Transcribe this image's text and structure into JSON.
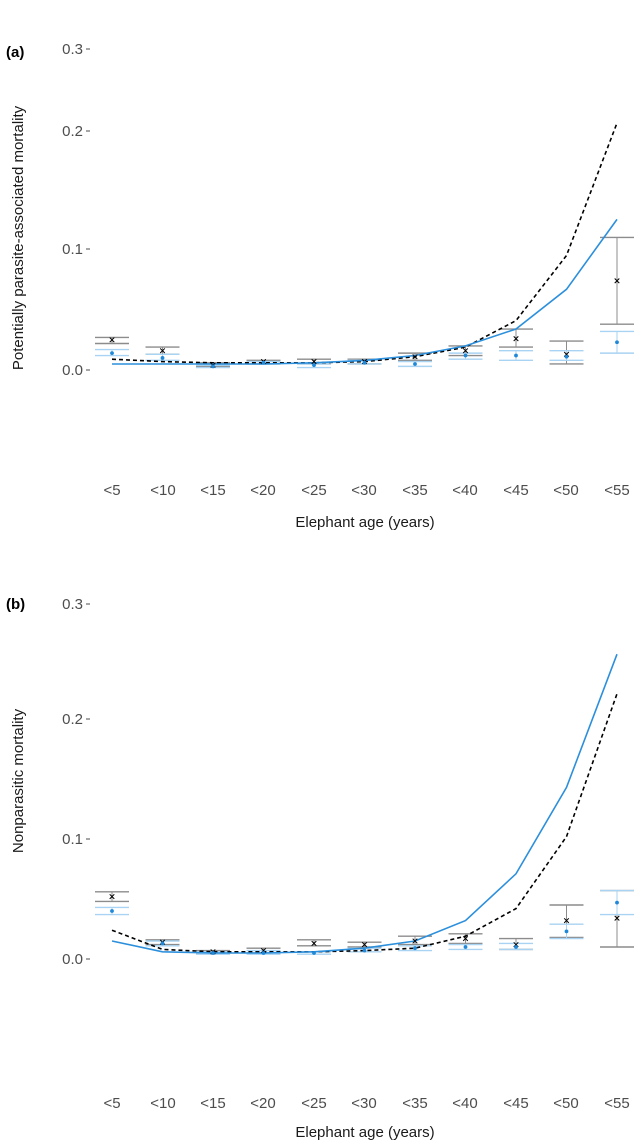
{
  "colors": {
    "observed_black": "#000000",
    "observed_blue": "#1f88d8",
    "ci_grey": "#8c8c8c",
    "ci_lightblue": "#a9d3f2",
    "model_black": "#000000",
    "model_blue": "#2c8fdc",
    "text": "#4d4d4d"
  },
  "chart_data": [
    {
      "type": "line",
      "panel_label": "(a)",
      "xlabel": "Elephant age (years)",
      "ylabel": "Potentially parasite-associated mortality",
      "categories": [
        "<5",
        "<10",
        "<15",
        "<20",
        "<25",
        "<30",
        "<35",
        "<40",
        "<45",
        "<50",
        "<55"
      ],
      "yticks": [
        "0.0",
        "0.1",
        "0.2",
        "0.3"
      ],
      "ylim": [
        -0.02,
        0.3
      ],
      "series": [
        {
          "style": "dashed-black",
          "values": [
            0.009,
            0.007,
            0.006,
            0.006,
            0.006,
            0.007,
            0.011,
            0.019,
            0.041,
            0.095,
            0.205
          ]
        },
        {
          "style": "solid-blue",
          "values": [
            0.005,
            0.005,
            0.005,
            0.005,
            0.006,
            0.008,
            0.012,
            0.02,
            0.034,
            0.067,
            0.125
          ]
        }
      ],
      "observed_black": [
        {
          "mean": 0.025,
          "lo": 0.022,
          "hi": 0.027
        },
        {
          "mean": 0.016,
          "lo": 0.013,
          "hi": 0.019
        },
        {
          "mean": 0.004,
          "lo": 0.003,
          "hi": 0.006
        },
        {
          "mean": 0.007,
          "lo": 0.005,
          "hi": 0.008
        },
        {
          "mean": 0.007,
          "lo": 0.005,
          "hi": 0.009
        },
        {
          "mean": 0.007,
          "lo": 0.005,
          "hi": 0.009
        },
        {
          "mean": 0.011,
          "lo": 0.008,
          "hi": 0.014
        },
        {
          "mean": 0.016,
          "lo": 0.012,
          "hi": 0.02
        },
        {
          "mean": 0.026,
          "lo": 0.019,
          "hi": 0.034
        },
        {
          "mean": 0.013,
          "lo": 0.005,
          "hi": 0.024
        },
        {
          "mean": 0.074,
          "lo": 0.038,
          "hi": 0.11
        }
      ],
      "observed_blue": [
        {
          "mean": 0.014,
          "lo": 0.012,
          "hi": 0.017
        },
        {
          "mean": 0.01,
          "lo": 0.008,
          "hi": 0.013
        },
        {
          "mean": 0.003,
          "lo": 0.002,
          "hi": 0.004
        },
        {
          "mean": 0.006,
          "lo": 0.005,
          "hi": 0.007
        },
        {
          "mean": 0.004,
          "lo": 0.002,
          "hi": 0.005
        },
        {
          "mean": 0.006,
          "lo": 0.005,
          "hi": 0.008
        },
        {
          "mean": 0.005,
          "lo": 0.003,
          "hi": 0.007
        },
        {
          "mean": 0.012,
          "lo": 0.009,
          "hi": 0.014
        },
        {
          "mean": 0.012,
          "lo": 0.008,
          "hi": 0.016
        },
        {
          "mean": 0.011,
          "lo": 0.008,
          "hi": 0.016
        },
        {
          "mean": 0.023,
          "lo": 0.014,
          "hi": 0.032
        }
      ]
    },
    {
      "type": "line",
      "panel_label": "(b)",
      "xlabel": "Elephant age (years)",
      "ylabel": "Nonparasitic mortality",
      "categories": [
        "<5",
        "<10",
        "<15",
        "<20",
        "<25",
        "<30",
        "<35",
        "<40",
        "<45",
        "<50",
        "<55"
      ],
      "yticks": [
        "0.0",
        "0.1",
        "0.2",
        "0.3"
      ],
      "ylim": [
        -0.02,
        0.3
      ],
      "series": [
        {
          "style": "dashed-black",
          "values": [
            0.024,
            0.008,
            0.006,
            0.006,
            0.006,
            0.007,
            0.009,
            0.019,
            0.042,
            0.102,
            0.221
          ]
        },
        {
          "style": "solid-blue",
          "values": [
            0.015,
            0.006,
            0.005,
            0.005,
            0.006,
            0.009,
            0.015,
            0.032,
            0.071,
            0.143,
            0.254
          ]
        }
      ],
      "observed_black": [
        {
          "mean": 0.052,
          "lo": 0.048,
          "hi": 0.056
        },
        {
          "mean": 0.014,
          "lo": 0.012,
          "hi": 0.016
        },
        {
          "mean": 0.006,
          "lo": 0.005,
          "hi": 0.007
        },
        {
          "mean": 0.007,
          "lo": 0.005,
          "hi": 0.009
        },
        {
          "mean": 0.013,
          "lo": 0.011,
          "hi": 0.016
        },
        {
          "mean": 0.012,
          "lo": 0.01,
          "hi": 0.014
        },
        {
          "mean": 0.015,
          "lo": 0.012,
          "hi": 0.019
        },
        {
          "mean": 0.017,
          "lo": 0.013,
          "hi": 0.021
        },
        {
          "mean": 0.012,
          "lo": 0.008,
          "hi": 0.017
        },
        {
          "mean": 0.032,
          "lo": 0.018,
          "hi": 0.045
        },
        {
          "mean": 0.034,
          "lo": 0.01,
          "hi": 0.057
        }
      ],
      "observed_blue": [
        {
          "mean": 0.04,
          "lo": 0.037,
          "hi": 0.043
        },
        {
          "mean": 0.013,
          "lo": 0.011,
          "hi": 0.015
        },
        {
          "mean": 0.005,
          "lo": 0.004,
          "hi": 0.006
        },
        {
          "mean": 0.005,
          "lo": 0.004,
          "hi": 0.007
        },
        {
          "mean": 0.005,
          "lo": 0.004,
          "hi": 0.006
        },
        {
          "mean": 0.007,
          "lo": 0.006,
          "hi": 0.009
        },
        {
          "mean": 0.009,
          "lo": 0.007,
          "hi": 0.011
        },
        {
          "mean": 0.01,
          "lo": 0.008,
          "hi": 0.012
        },
        {
          "mean": 0.01,
          "lo": 0.008,
          "hi": 0.013
        },
        {
          "mean": 0.023,
          "lo": 0.017,
          "hi": 0.029
        },
        {
          "mean": 0.047,
          "lo": 0.037,
          "hi": 0.057
        }
      ]
    }
  ]
}
